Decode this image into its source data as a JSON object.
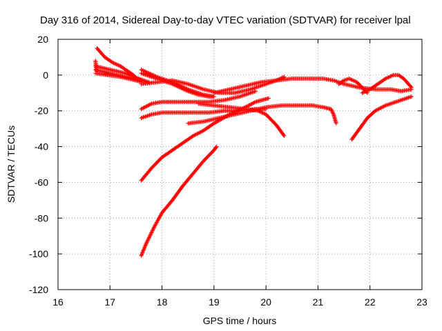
{
  "chart_data": {
    "type": "scatter",
    "title": "Day 316 of 2014, Sidereal Day-to-day VTEC variation (SDTVAR) for receiver lpal",
    "xlabel": "GPS time / hours",
    "ylabel": "SDTVAR / TECUs",
    "xlim": [
      16,
      23
    ],
    "ylim": [
      -120,
      20
    ],
    "xticks": [
      16,
      17,
      18,
      19,
      20,
      21,
      22,
      23
    ],
    "yticks": [
      -120,
      -100,
      -80,
      -60,
      -40,
      -20,
      0,
      20
    ],
    "grid": true,
    "marker": "plus",
    "color": "#ff0000",
    "series": [
      {
        "x": [
          16.75,
          16.9,
          17.05,
          17.2,
          17.35,
          17.45,
          17.5,
          17.6
        ],
        "y": [
          15,
          10,
          7,
          5,
          2,
          0,
          -2,
          -3
        ]
      },
      {
        "x": [
          16.72,
          17.0,
          17.3,
          17.55,
          17.75
        ],
        "y": [
          5,
          3,
          1,
          -2,
          -4
        ]
      },
      {
        "x": [
          16.72,
          17.0,
          17.3,
          17.6
        ],
        "y": [
          3,
          1,
          -1,
          -3
        ]
      },
      {
        "x": [
          16.72,
          16.95,
          17.2,
          17.5,
          17.62
        ],
        "y": [
          1,
          0,
          -1,
          -3,
          -4
        ]
      },
      {
        "x": [
          16.72,
          16.73,
          16.74
        ],
        "y": [
          8,
          5,
          2
        ]
      },
      {
        "x": [
          17.6,
          17.9,
          18.2,
          18.5,
          18.8,
          19.1,
          19.4,
          19.7,
          20.0,
          20.2,
          20.35
        ],
        "y": [
          -5,
          -4,
          -3,
          -5,
          -8,
          -10,
          -10,
          -8,
          -5,
          -3,
          -1
        ]
      },
      {
        "x": [
          17.6,
          17.9,
          18.2,
          18.5,
          18.8,
          19.0
        ],
        "y": [
          3,
          -1,
          -4,
          -8,
          -11,
          -12
        ]
      },
      {
        "x": [
          17.6,
          17.9,
          18.2,
          18.5,
          18.7,
          18.9,
          19.0
        ],
        "y": [
          1,
          -2,
          -5,
          -9,
          -11,
          -12,
          -12
        ]
      },
      {
        "x": [
          17.6,
          17.8,
          18.0,
          18.3,
          18.6,
          18.9,
          19.2,
          19.5,
          19.7,
          19.8
        ],
        "y": [
          -19,
          -16,
          -15,
          -15,
          -15,
          -15,
          -14,
          -12,
          -10,
          -9
        ]
      },
      {
        "x": [
          17.6,
          17.8,
          18.0,
          18.3,
          18.6,
          18.9,
          19.2,
          19.5,
          19.8,
          20.0
        ],
        "y": [
          -24,
          -22,
          -21,
          -21,
          -21,
          -21,
          -20,
          -20,
          -19,
          -19
        ]
      },
      {
        "x": [
          19.0,
          19.3,
          19.6,
          19.9,
          20.2,
          20.5,
          20.8,
          21.1,
          21.3,
          21.5,
          21.8,
          22.1,
          22.4,
          22.6,
          22.8
        ],
        "y": [
          -10,
          -8,
          -6,
          -4,
          -3,
          -2,
          -2,
          -2,
          -3,
          -5,
          -7,
          -8,
          -8,
          -9,
          -8
        ]
      },
      {
        "x": [
          18.5,
          18.8,
          19.1,
          19.4,
          19.7,
          20.0,
          20.3,
          20.6,
          20.9,
          21.1,
          21.25,
          21.3,
          21.35
        ],
        "y": [
          -27,
          -26,
          -24,
          -22,
          -20,
          -18,
          -17,
          -17,
          -17,
          -18,
          -19,
          -22,
          -27
        ]
      },
      {
        "x": [
          18.7,
          19.0,
          19.3,
          19.6,
          19.85,
          20.0,
          20.2,
          20.35
        ],
        "y": [
          -16,
          -17,
          -18,
          -19,
          -20,
          -22,
          -28,
          -34
        ]
      },
      {
        "x": [
          17.6,
          17.8,
          18.0,
          18.2,
          18.4,
          18.6,
          18.8,
          19.0,
          19.3,
          19.6,
          19.8,
          20.05
        ],
        "y": [
          -59,
          -52,
          -46,
          -42,
          -38,
          -34,
          -31,
          -27,
          -22,
          -18,
          -15,
          -13
        ]
      },
      {
        "x": [
          17.6,
          17.7,
          17.85,
          18.0,
          18.2,
          18.4,
          18.6,
          18.8,
          19.0,
          19.05
        ],
        "y": [
          -101,
          -94,
          -85,
          -77,
          -70,
          -62,
          -55,
          -48,
          -42,
          -40
        ]
      },
      {
        "x": [
          21.65,
          21.8,
          21.95,
          22.1,
          22.3,
          22.5,
          22.7,
          22.8
        ],
        "y": [
          -36,
          -30,
          -24,
          -20,
          -17,
          -15,
          -13,
          -12
        ]
      },
      {
        "x": [
          21.85,
          22.0,
          22.15,
          22.3,
          22.45,
          22.55,
          22.65,
          22.8
        ],
        "y": [
          -10,
          -8,
          -5,
          -2,
          0,
          0,
          -2,
          -7
        ]
      },
      {
        "x": [
          21.4,
          21.5,
          21.6,
          21.75,
          21.85,
          21.95
        ],
        "y": [
          -5,
          -3,
          -2,
          -4,
          -7,
          -10
        ]
      }
    ]
  }
}
